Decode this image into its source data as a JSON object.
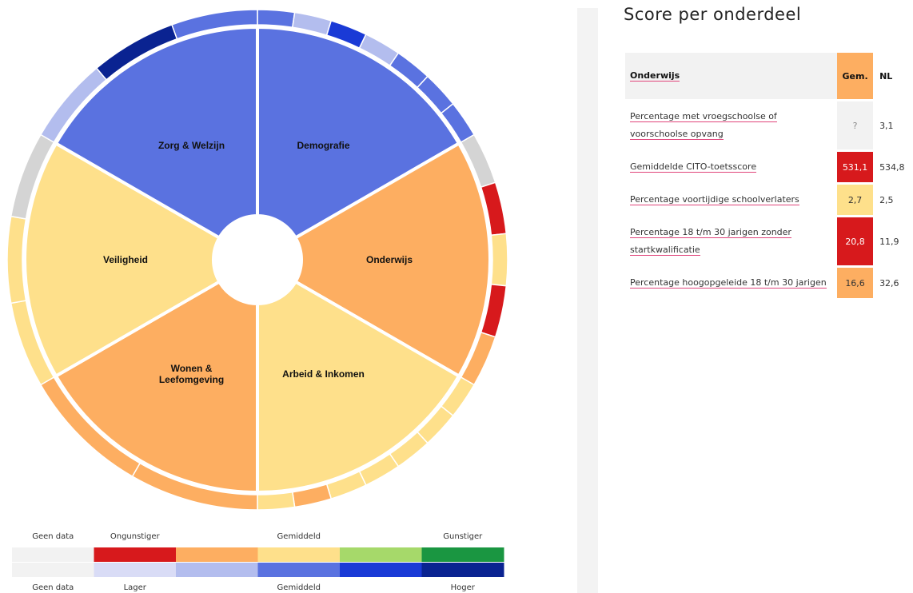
{
  "wheel": {
    "sectors": [
      {
        "name": "Demografie",
        "color": "#5a72e0",
        "segments": [
          "#5a72e0",
          "#b3bdee",
          "#1a3ad6",
          "#b3bdee",
          "#5a72e0",
          "#5a72e0",
          "#5a72e0"
        ]
      },
      {
        "name": "Onderwijs",
        "color": "#fdae61",
        "segments": [
          "#d4d4d4",
          "#d7191c",
          "#fee08b",
          "#d7191c",
          "#fdae61"
        ]
      },
      {
        "name": "Arbeid & Inkomen",
        "color": "#fee08b",
        "segments": [
          "#fee08b",
          "#fee08b",
          "#fee08b",
          "#fee08b",
          "#fee08b",
          "#fdae61",
          "#fee08b"
        ]
      },
      {
        "name": "Wonen &\nLeefomgeving",
        "color": "#fdae61",
        "segments": [
          "#fdae61",
          "#fdae61"
        ]
      },
      {
        "name": "Veiligheid",
        "color": "#fee08b",
        "segments": [
          "#fee08b",
          "#fee08b",
          "#d4d4d4"
        ]
      },
      {
        "name": "Zorg & Welzijn",
        "color": "#5a72e0",
        "segments": [
          "#b3bdee",
          "#0a2391",
          "#5a72e0"
        ]
      }
    ]
  },
  "legend": {
    "top_labels": [
      "Geen data",
      "Ongunstiger",
      "Gemiddeld",
      "Gunstiger"
    ],
    "top_colors": [
      "#f2f2f2",
      "#d7191c",
      "#fdae61",
      "#fee08b",
      "#a6d96a",
      "#1a9641"
    ],
    "bottom_labels": [
      "Geen data",
      "Lager",
      "Gemiddeld",
      "Hoger"
    ],
    "bottom_colors": [
      "#f2f2f2",
      "#d9dcf6",
      "#b3bdee",
      "#5a72e0",
      "#1a3ad6",
      "#0a2391"
    ]
  },
  "panel": {
    "title": "Score per onderdeel",
    "table": {
      "header": [
        "Onderwijs",
        "Gem.",
        "NL"
      ],
      "rows": [
        {
          "label": "Percentage met vroegschoolse of voorschoolse opvang",
          "gem": "?",
          "nl": "3,1",
          "color": "#f2f2f2"
        },
        {
          "label": "Gemiddelde CITO-toetsscore",
          "gem": "531,1",
          "nl": "534,8",
          "color": "#d7191c"
        },
        {
          "label": "Percentage voortijdige schoolverlaters",
          "gem": "2,7",
          "nl": "2,5",
          "color": "#fee08b"
        },
        {
          "label": "Percentage 18 t/m 30 jarigen zonder startkwalificatie",
          "gem": "20,8",
          "nl": "11,9",
          "color": "#d7191c"
        },
        {
          "label": "Percentage hoogopgeleide 18 t/m 30 jarigen",
          "gem": "16,6",
          "nl": "32,6",
          "color": "#fdae61"
        }
      ]
    }
  }
}
